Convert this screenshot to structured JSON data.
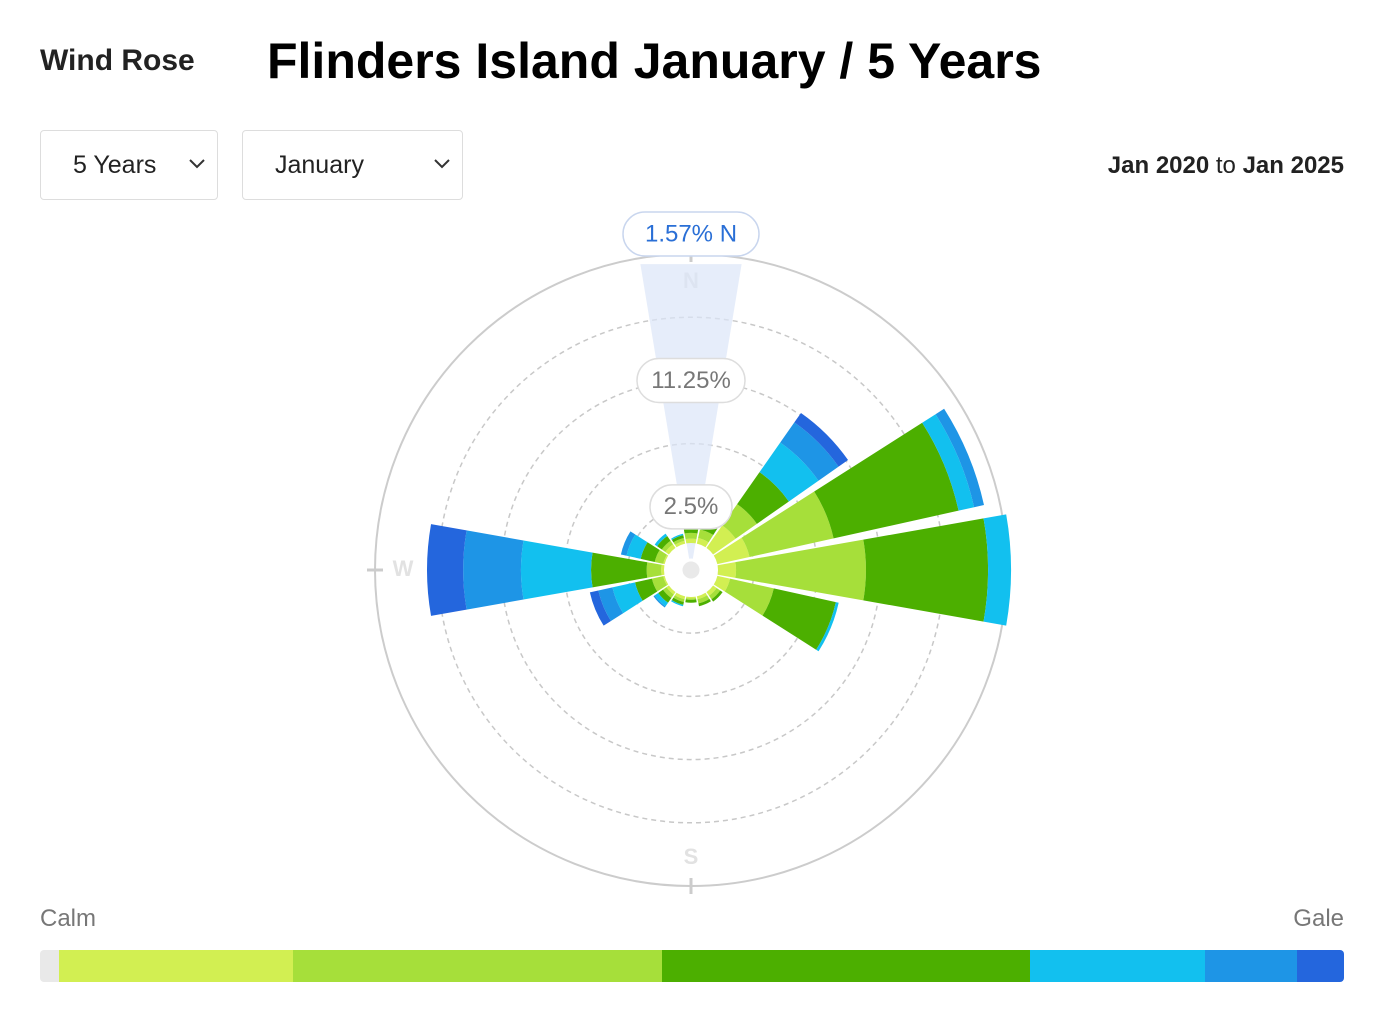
{
  "header": {
    "label": "Wind Rose",
    "range_start": "Jan 2020",
    "range_joiner": "to",
    "range_end": "Jan 2025"
  },
  "controls": {
    "period": "5 Years",
    "month": "January"
  },
  "chart_data": {
    "type": "windrose",
    "title": "Flinders Island January / 5 Years",
    "categories": [
      "N",
      null,
      null,
      null,
      null,
      null,
      null,
      null,
      "S",
      null,
      null,
      null,
      "W",
      null,
      null,
      null
    ],
    "rlim": [
      0,
      20
    ],
    "rticks": [
      {
        "value": 2.5,
        "label": "2.5%"
      },
      {
        "value": 6.875,
        "label": null
      },
      {
        "value": 11.25,
        "label": "11.25%"
      },
      {
        "value": 15.625,
        "label": null
      }
    ],
    "calm_color": "#e9e9e9",
    "series": [
      {
        "color": "#d2ef52",
        "values": [
          0.3,
          0.4,
          1.9,
          2.28,
          1.25,
          0.9,
          0.3,
          0.2,
          0.1,
          0.2,
          0.2,
          0.1,
          0.2,
          0.1,
          0.3,
          0.2
        ]
      },
      {
        "color": "#a6df3a",
        "values": [
          0.4,
          0.6,
          1.8,
          5.96,
          8.99,
          3.1,
          0.3,
          0.3,
          0.1,
          0.2,
          0.3,
          0.8,
          1.0,
          0.6,
          0.3,
          0.2
        ]
      },
      {
        "color": "#4caf00",
        "values": [
          0.4,
          0.8,
          2.7,
          8.86,
          8.45,
          4.4,
          0.2,
          0.2,
          0.2,
          0.2,
          0.4,
          1.2,
          3.85,
          1.0,
          0.4,
          0.2
        ]
      },
      {
        "color": "#12c0ef",
        "values": [
          0.4,
          0.6,
          2.5,
          1.1,
          1.59,
          0.2,
          0,
          0,
          0,
          0.1,
          0.3,
          1.6,
          4.85,
          1.0,
          0.2,
          0.1
        ]
      },
      {
        "color": "#1e95e6",
        "values": [
          0.07,
          0.2,
          1.7,
          0.7,
          0,
          0,
          0,
          0,
          0,
          0,
          0.1,
          1.0,
          4.0,
          0.4,
          0,
          0
        ]
      },
      {
        "color": "#2466dd",
        "values": [
          0,
          0,
          0.8,
          0,
          0,
          0,
          0,
          0,
          0,
          0,
          0,
          0.6,
          2.5,
          0,
          0,
          0
        ]
      }
    ],
    "annotation": "1.57% N",
    "legend_labels": [
      "Calm",
      "Gale"
    ]
  }
}
